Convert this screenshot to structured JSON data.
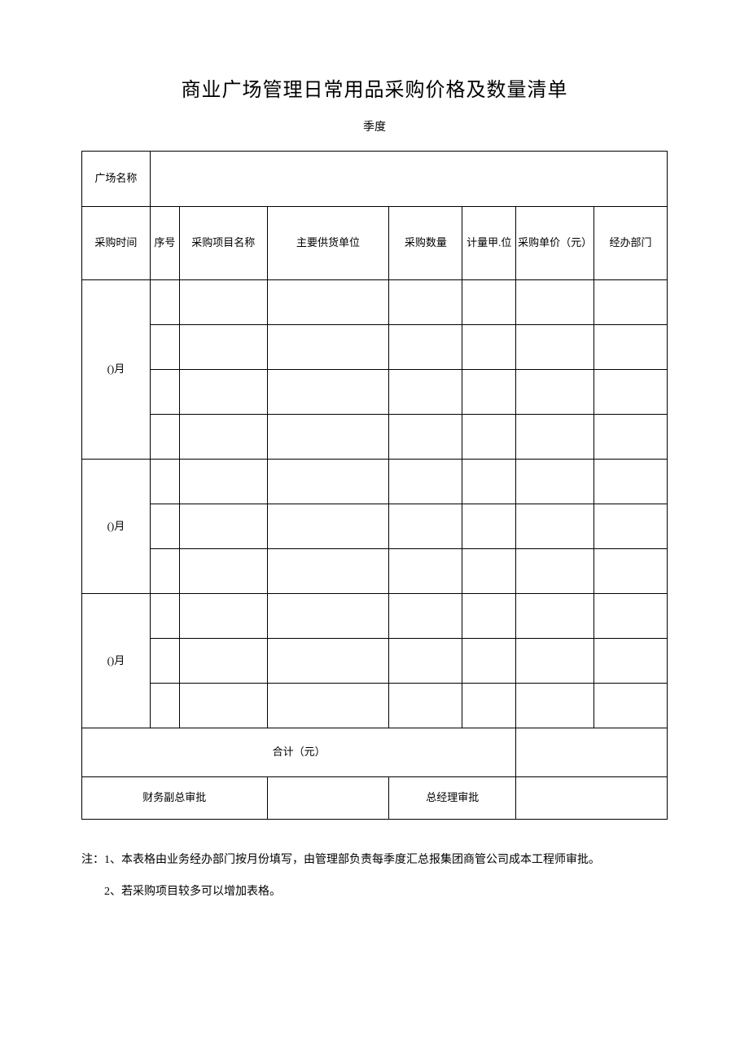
{
  "title": "商业广场管理日常用品采购价格及数量清单",
  "subtitle": "季度",
  "table": {
    "plaza_name_label": "广场名称",
    "plaza_name_value": "",
    "headers": {
      "time": "采购时间",
      "seq": "序号",
      "item": "采购项目名称",
      "supplier": "主要供货单位",
      "qty": "采购数量",
      "unit": "计量甲.位",
      "price": "采购单价（元）",
      "dept": "经办部门"
    },
    "months": [
      {
        "label": "()月",
        "row_count": 4
      },
      {
        "label": "()月",
        "row_count": 3
      },
      {
        "label": "()月",
        "row_count": 3
      }
    ],
    "total_label": "合计（元）",
    "total_value": "",
    "approve_finance_label": "财务副总审批",
    "approve_finance_value": "",
    "approve_gm_label": "总经理审批",
    "approve_gm_value": ""
  },
  "notes": {
    "line1": "注：1、本表格由业务经办部门按月份填写，由管理部负责每季度汇总报集团商管公司成本工程师审批。",
    "line2": "2、若采购项目较多可以增加表格。"
  },
  "style": {
    "title_fontsize": 24,
    "body_fontsize": 13,
    "notes_fontsize": 14,
    "border_color": "#000000",
    "background_color": "#ffffff",
    "text_color": "#000000"
  }
}
